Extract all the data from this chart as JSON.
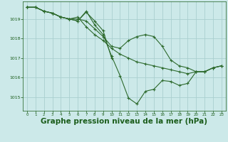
{
  "background_color": "#cce9e9",
  "grid_color": "#aacfcf",
  "line_color": "#2d6a2d",
  "marker_color": "#2d6a2d",
  "title": "Graphe pression niveau de la mer (hPa)",
  "title_fontsize": 7.5,
  "title_color": "#1a5c1a",
  "tick_color": "#1a5c1a",
  "xlim": [
    -0.5,
    23.5
  ],
  "ylim": [
    1014.3,
    1019.9
  ],
  "yticks": [
    1015,
    1016,
    1017,
    1018,
    1019
  ],
  "xticks": [
    0,
    1,
    2,
    3,
    4,
    5,
    6,
    7,
    8,
    9,
    10,
    11,
    12,
    13,
    14,
    15,
    16,
    17,
    18,
    19,
    20,
    21,
    22,
    23
  ],
  "lines": [
    {
      "x": [
        0,
        1,
        2,
        3,
        4,
        5,
        6,
        7,
        8,
        9,
        10,
        11,
        12,
        13,
        14,
        15,
        16,
        17,
        18,
        19,
        20,
        21,
        22,
        23
      ],
      "y": [
        1019.6,
        1019.6,
        1019.4,
        1019.3,
        1019.1,
        1019.0,
        1018.9,
        1019.4,
        1018.7,
        1018.2,
        1017.1,
        1016.1,
        1014.95,
        1014.65,
        1015.3,
        1015.4,
        1015.85,
        1015.8,
        1015.6,
        1015.7,
        1016.3,
        1016.3,
        1016.5,
        1016.6
      ]
    },
    {
      "x": [
        0,
        1,
        2,
        3,
        4,
        5,
        6,
        7,
        8,
        9,
        10,
        11,
        12,
        13,
        14,
        15,
        16,
        17,
        18,
        19,
        20,
        21,
        22,
        23
      ],
      "y": [
        1019.6,
        1019.6,
        1019.4,
        1019.3,
        1019.1,
        1019.0,
        1019.0,
        1018.9,
        1018.5,
        1018.1,
        1017.6,
        1017.5,
        1017.9,
        1018.1,
        1018.2,
        1018.1,
        1017.6,
        1016.9,
        1016.6,
        1016.5,
        1016.3,
        1016.3,
        1016.5,
        1016.6
      ]
    },
    {
      "x": [
        0,
        1,
        2,
        3,
        4,
        5,
        6,
        7,
        8,
        9,
        10,
        11,
        12,
        13,
        14,
        15,
        16,
        17,
        18,
        19,
        20,
        21,
        22,
        23
      ],
      "y": [
        1019.6,
        1019.6,
        1019.4,
        1019.3,
        1019.1,
        1019.0,
        1019.1,
        1018.6,
        1018.2,
        1017.9,
        1017.5,
        1017.2,
        1017.0,
        1016.8,
        1016.7,
        1016.6,
        1016.5,
        1016.4,
        1016.3,
        1016.2,
        1016.3,
        1016.3,
        1016.5,
        1016.6
      ]
    },
    {
      "x": [
        0,
        1,
        2,
        3,
        4,
        5,
        6,
        7,
        8,
        9,
        10
      ],
      "y": [
        1019.6,
        1019.6,
        1019.4,
        1019.3,
        1019.1,
        1019.0,
        1018.9,
        1019.35,
        1018.9,
        1018.4,
        1017.0
      ]
    }
  ]
}
